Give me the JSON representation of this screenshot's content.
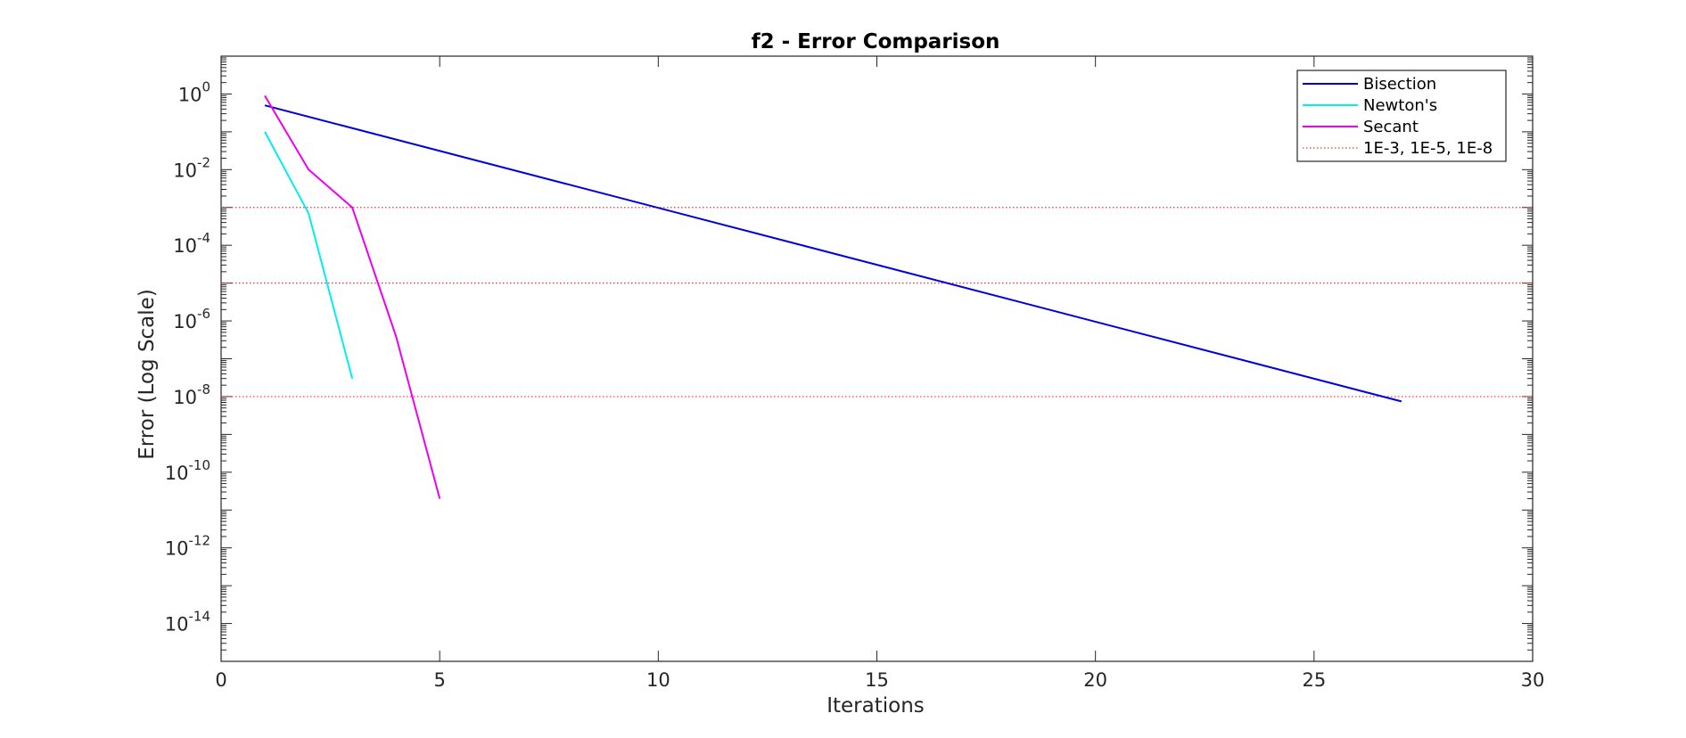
{
  "chart_data": {
    "type": "line",
    "title": "f2 - Error Comparison",
    "xlabel": "Iterations",
    "ylabel": "Error (Log Scale)",
    "xlim": [
      0,
      30
    ],
    "ylim": [
      1e-15,
      10
    ],
    "yscale": "log",
    "grid": false,
    "legend_position": "top-right",
    "x_ticks": [
      {
        "value": 0,
        "label": "0"
      },
      {
        "value": 5,
        "label": "5"
      },
      {
        "value": 10,
        "label": "10"
      },
      {
        "value": 15,
        "label": "15"
      },
      {
        "value": 20,
        "label": "20"
      },
      {
        "value": 25,
        "label": "25"
      },
      {
        "value": 30,
        "label": "30"
      }
    ],
    "y_ticks": [
      {
        "exp": 0,
        "base": "10",
        "sup": "0"
      },
      {
        "exp": -2,
        "base": "10",
        "sup": "-2"
      },
      {
        "exp": -4,
        "base": "10",
        "sup": "-4"
      },
      {
        "exp": -6,
        "base": "10",
        "sup": "-6"
      },
      {
        "exp": -8,
        "base": "10",
        "sup": "-8"
      },
      {
        "exp": -10,
        "base": "10",
        "sup": "-10"
      },
      {
        "exp": -12,
        "base": "10",
        "sup": "-12"
      },
      {
        "exp": -14,
        "base": "10",
        "sup": "-14"
      }
    ],
    "series": [
      {
        "name": "Bisection",
        "color": "#0000dd",
        "style": "solid",
        "x": [
          1,
          27
        ],
        "y": [
          0.5,
          7.45e-09
        ]
      },
      {
        "name": "Newton's",
        "color": "#00eeee",
        "style": "solid",
        "x": [
          1,
          2,
          3
        ],
        "y": [
          0.1,
          0.0007,
          3e-08
        ]
      },
      {
        "name": "Secant",
        "color": "#ee00ee",
        "style": "solid",
        "x": [
          1,
          2,
          3,
          4,
          5
        ],
        "y": [
          0.9,
          0.01,
          0.001,
          4e-07,
          2e-11
        ]
      }
    ],
    "reference_lines": {
      "name": "1E-3, 1E-5, 1E-8",
      "color": "#ff3030",
      "style": "dotted",
      "y": [
        0.001,
        1e-05,
        1e-08
      ]
    }
  }
}
